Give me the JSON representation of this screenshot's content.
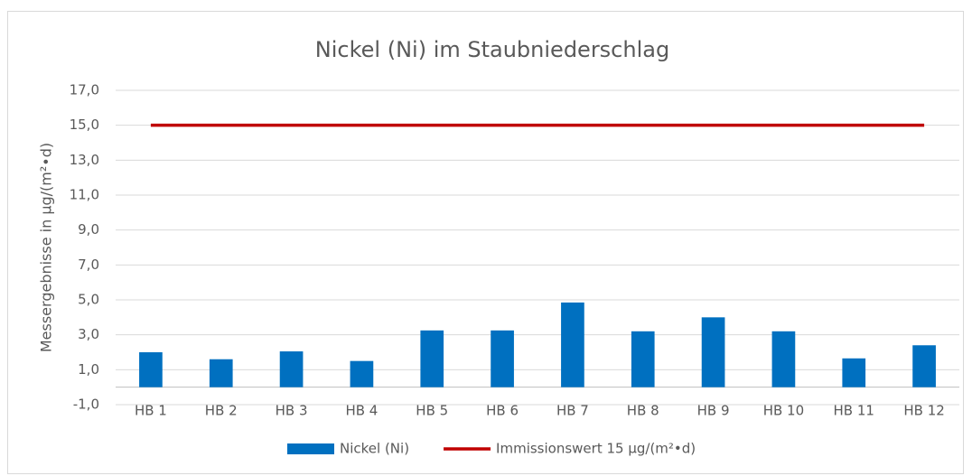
{
  "chart_data": {
    "type": "bar",
    "title": "Nickel (Ni) im Staubniederschlag",
    "y_label": "Messergebnisse in µg/(m²•d)",
    "categories": [
      "HB 1",
      "HB 2",
      "HB 3",
      "HB 4",
      "HB 5",
      "HB 6",
      "HB 7",
      "HB 8",
      "HB 9",
      "HB 10",
      "HB 11",
      "HB 12"
    ],
    "series": [
      {
        "name": "Nickel (Ni)",
        "type": "bar",
        "color": "#0070c0",
        "values": [
          2.0,
          1.6,
          2.05,
          1.5,
          3.25,
          3.25,
          4.85,
          3.2,
          4.0,
          3.2,
          1.65,
          2.4
        ]
      },
      {
        "name": "Immissionswert 15 µg/(m²•d)",
        "type": "line",
        "color": "#c00000",
        "values": [
          15,
          15,
          15,
          15,
          15,
          15,
          15,
          15,
          15,
          15,
          15,
          15
        ]
      }
    ],
    "ylim": [
      -1,
      17
    ],
    "yticks": [
      {
        "value": -1,
        "label": "-1,0"
      },
      {
        "value": 1,
        "label": "1,0"
      },
      {
        "value": 3,
        "label": "3,0"
      },
      {
        "value": 5,
        "label": "5,0"
      },
      {
        "value": 7,
        "label": "7,0"
      },
      {
        "value": 9,
        "label": "9,0"
      },
      {
        "value": 11,
        "label": "11,0"
      },
      {
        "value": 13,
        "label": "13,0"
      },
      {
        "value": 15,
        "label": "15,0"
      },
      {
        "value": 17,
        "label": "17,0"
      }
    ],
    "grid": true,
    "legend": "bottom"
  }
}
